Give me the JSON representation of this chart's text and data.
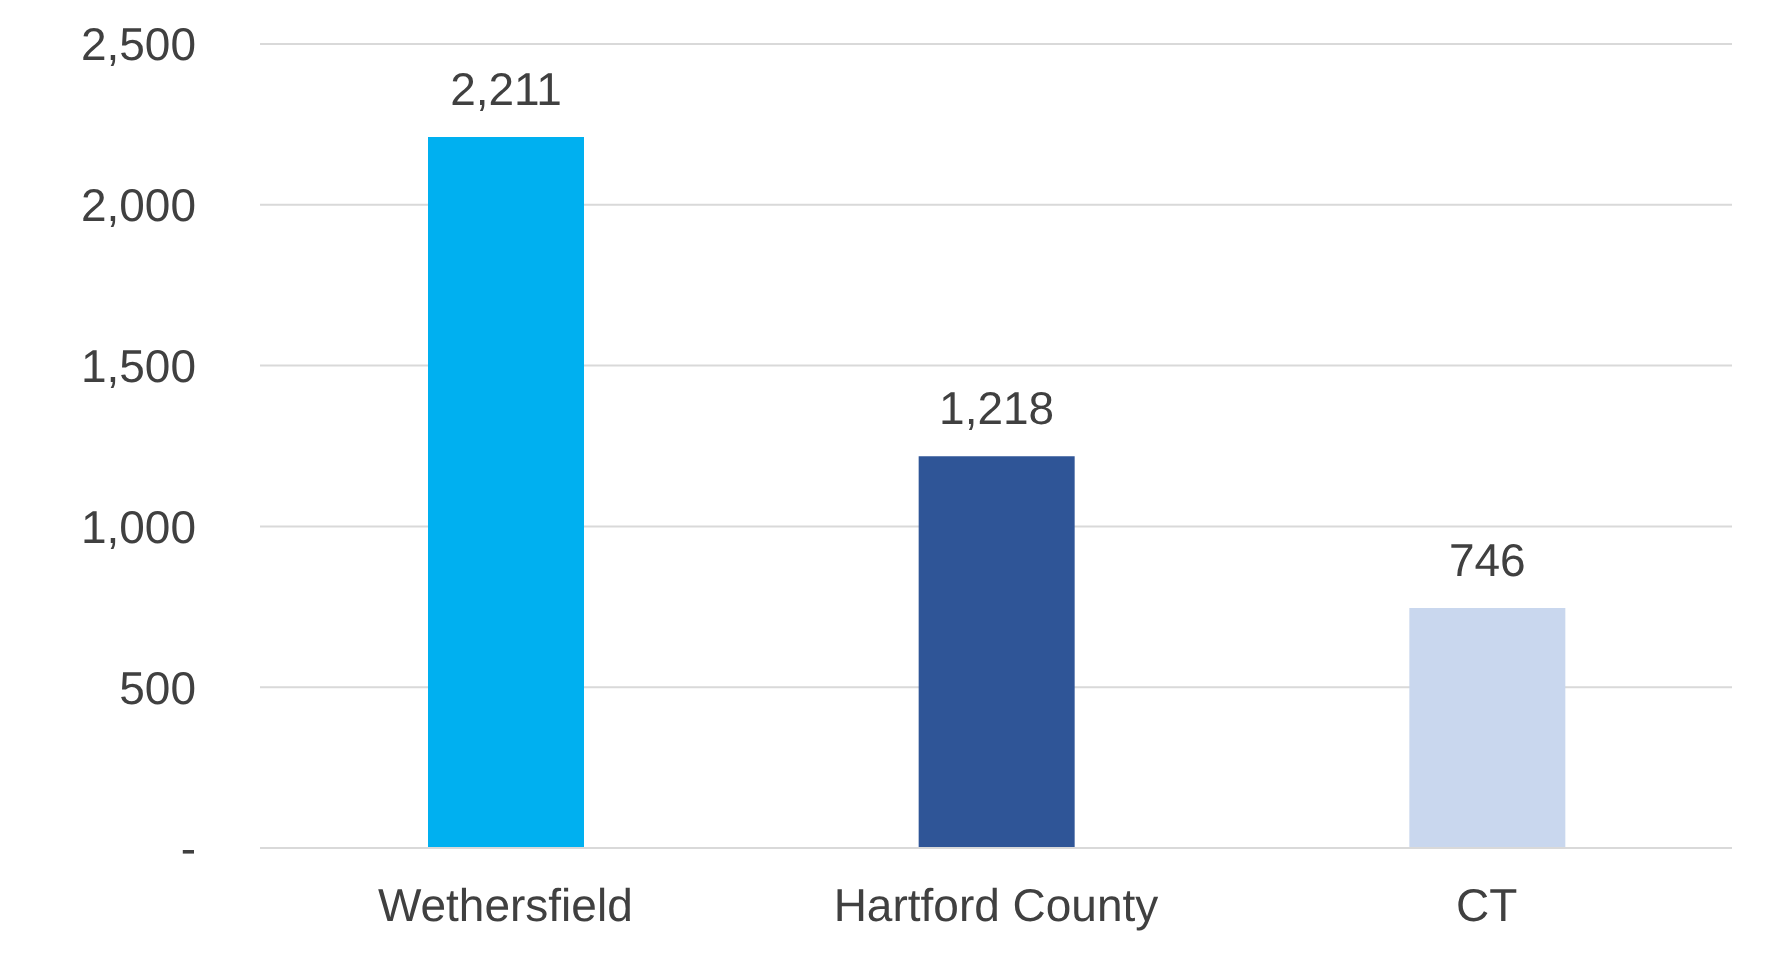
{
  "chart_data": {
    "type": "bar",
    "categories": [
      "Wethersfield",
      "Hartford County",
      "CT"
    ],
    "values": [
      2211,
      1218,
      746
    ],
    "colors": [
      "#00b0f0",
      "#2f5597",
      "#c9d7ee"
    ],
    "value_labels": [
      "2,211",
      "1,218",
      "746"
    ],
    "ylim": [
      0,
      2500
    ],
    "yticks": [
      {
        "value": 0,
        "label": "-"
      },
      500,
      {
        "value": 1000,
        "label": "1,000"
      },
      {
        "value": 1500,
        "label": "1,500"
      },
      {
        "value": 2000,
        "label": "2,000"
      },
      {
        "value": 2500,
        "label": "2,500"
      }
    ],
    "grid": "y",
    "legend": false
  }
}
